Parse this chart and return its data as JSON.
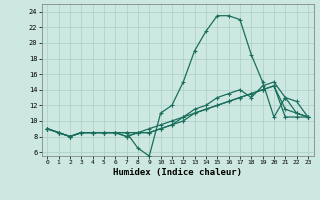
{
  "xlabel": "Humidex (Indice chaleur)",
  "xlim": [
    -0.5,
    23.5
  ],
  "ylim": [
    5.5,
    25.0
  ],
  "xticks": [
    0,
    1,
    2,
    3,
    4,
    5,
    6,
    7,
    8,
    9,
    10,
    11,
    12,
    13,
    14,
    15,
    16,
    17,
    18,
    19,
    20,
    21,
    22,
    23
  ],
  "yticks": [
    6,
    8,
    10,
    12,
    14,
    16,
    18,
    20,
    22,
    24
  ],
  "background_color": "#cde8e0",
  "grid_color": "#aacfc7",
  "line_color": "#1a6e5e",
  "line1_y": [
    9.0,
    8.5,
    8.0,
    8.5,
    8.5,
    8.5,
    8.5,
    8.5,
    6.5,
    5.5,
    11.0,
    12.0,
    15.0,
    19.0,
    21.5,
    23.5,
    23.5,
    23.0,
    18.5,
    15.0,
    10.5,
    13.0,
    11.0,
    10.5
  ],
  "line2_y": [
    9.0,
    8.5,
    8.0,
    8.5,
    8.5,
    8.5,
    8.5,
    8.0,
    8.5,
    8.5,
    9.0,
    9.5,
    10.5,
    11.5,
    12.0,
    13.0,
    13.5,
    14.0,
    13.0,
    14.5,
    15.0,
    13.0,
    12.5,
    10.5
  ],
  "line3_y": [
    9.0,
    8.5,
    8.0,
    8.5,
    8.5,
    8.5,
    8.5,
    8.0,
    8.5,
    8.5,
    9.0,
    9.5,
    10.0,
    11.0,
    11.5,
    12.0,
    12.5,
    13.0,
    13.5,
    14.0,
    14.5,
    11.5,
    11.0,
    10.5
  ],
  "line4_y": [
    9.0,
    8.5,
    8.0,
    8.5,
    8.5,
    8.5,
    8.5,
    8.5,
    8.5,
    9.0,
    9.5,
    10.0,
    10.5,
    11.0,
    11.5,
    12.0,
    12.5,
    13.0,
    13.5,
    14.0,
    14.5,
    10.5,
    10.5,
    10.5
  ]
}
